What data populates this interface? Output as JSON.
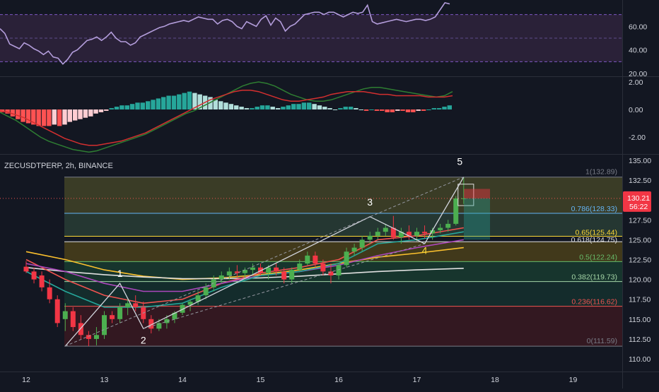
{
  "header": {
    "symbol_label": "ZECUSDTPERP, 2h, BINANCE"
  },
  "colors": {
    "background": "#131722",
    "up": "#26a69a",
    "down": "#ef5350",
    "bright_up": "#4caf50",
    "bright_down": "#f23645",
    "rsi_line": "#b39ddb",
    "rsi_band": "#7e57c2",
    "macd_line": "#2e7d32",
    "signal_line": "#d32f2f"
  },
  "rsi": {
    "axis_ticks": [
      "60.00",
      "40.00",
      "20.00"
    ],
    "upper_band": 70,
    "lower_band": 30,
    "values": [
      58,
      54,
      45,
      43,
      41,
      46,
      44,
      41,
      39,
      36,
      39,
      34,
      33,
      28,
      32,
      38,
      40,
      44,
      48,
      49,
      51,
      48,
      51,
      55,
      50,
      47,
      47,
      44,
      46,
      51,
      53,
      55,
      57,
      59,
      60,
      62,
      63,
      64,
      65,
      64,
      66,
      68,
      67,
      66,
      66,
      62,
      65,
      66,
      64,
      60,
      58,
      64,
      62,
      60,
      66,
      69,
      61,
      67,
      64,
      56,
      60,
      62,
      66,
      70,
      71,
      72,
      72,
      70,
      72,
      72,
      70,
      68,
      70,
      72,
      71,
      72,
      78,
      64,
      62,
      63,
      64,
      65,
      66,
      65,
      64,
      65,
      66,
      66,
      65,
      66,
      68,
      74,
      80,
      79
    ]
  },
  "macd": {
    "axis_ticks": [
      "2.00",
      "0.00",
      "-2.00"
    ],
    "histogram": [
      -0.2,
      -0.3,
      -0.5,
      -0.7,
      -0.9,
      -1.0,
      -1.1,
      -1.2,
      -1.2,
      -1.2,
      -1.1,
      -1.2,
      -1.1,
      -0.9,
      -0.8,
      -0.7,
      -0.6,
      -0.5,
      -0.3,
      -0.2,
      -0.1,
      0.1,
      0.2,
      0.3,
      0.3,
      0.4,
      0.5,
      0.5,
      0.6,
      0.7,
      0.8,
      0.9,
      1.0,
      1.0,
      1.1,
      1.2,
      1.3,
      1.2,
      1.1,
      1.0,
      0.9,
      0.7,
      0.6,
      0.5,
      0.4,
      0.3,
      0.2,
      0.1,
      0.1,
      0.2,
      0.3,
      0.3,
      0.2,
      0.1,
      0.2,
      0.3,
      0.4,
      0.4,
      0.5,
      0.5,
      0.4,
      0.3,
      0.2,
      0.1,
      0.0,
      0.1,
      0.2,
      0.2,
      0.1,
      0.0,
      -0.1,
      0.0,
      -0.1,
      -0.1,
      -0.2,
      -0.2,
      -0.1,
      -0.1,
      -0.2,
      -0.2,
      -0.1,
      -0.1,
      0.0,
      0.1,
      0.1,
      0.2,
      0.3
    ],
    "macd_line": [
      -0.2,
      -0.5,
      -0.8,
      -1.2,
      -1.6,
      -2.0,
      -2.3,
      -2.5,
      -2.7,
      -2.9,
      -3.0,
      -3.1,
      -3.0,
      -2.8,
      -2.6,
      -2.4,
      -2.2,
      -2.0,
      -1.8,
      -1.5,
      -1.2,
      -0.9,
      -0.6,
      -0.3,
      -0.1,
      0.2,
      0.5,
      0.8,
      1.1,
      1.4,
      1.7,
      1.9,
      2.0,
      1.9,
      1.7,
      1.4,
      1.1,
      0.9,
      0.7,
      0.6,
      0.6,
      0.7,
      0.9,
      1.1,
      1.3,
      1.5,
      1.6,
      1.6,
      1.5,
      1.4,
      1.3,
      1.2,
      1.1,
      1.0,
      0.9,
      1.0,
      1.3
    ],
    "signal_line": [
      -0.1,
      -0.2,
      -0.4,
      -0.6,
      -0.9,
      -1.2,
      -1.5,
      -1.8,
      -2.1,
      -2.3,
      -2.5,
      -2.6,
      -2.6,
      -2.5,
      -2.4,
      -2.3,
      -2.1,
      -1.9,
      -1.7,
      -1.4,
      -1.1,
      -0.8,
      -0.5,
      -0.2,
      0.1,
      0.4,
      0.7,
      0.9,
      1.1,
      1.3,
      1.4,
      1.4,
      1.3,
      1.1,
      0.9,
      0.7,
      0.6,
      0.6,
      0.7,
      0.8,
      0.9,
      1.1,
      1.2,
      1.3,
      1.3,
      1.3,
      1.2,
      1.1,
      1.1,
      1.0,
      1.0,
      1.0,
      1.0,
      0.9,
      0.9,
      0.9,
      1.0
    ]
  },
  "price_axis": {
    "ticks": [
      "135.00",
      "132.50",
      "127.50",
      "125.00",
      "122.50",
      "120.00",
      "117.50",
      "115.00",
      "112.50",
      "110.00"
    ],
    "current_price": "130.21",
    "countdown": "56:22"
  },
  "chart_data": {
    "type": "candlestick",
    "symbol": "ZECUSDTPERP",
    "interval": "2h",
    "exchange": "BINANCE",
    "x_labels": [
      "12",
      "13",
      "14",
      "15",
      "16",
      "17",
      "18",
      "19"
    ],
    "ylim": [
      109.5,
      135.5
    ],
    "candles": [
      [
        12.0,
        121.6,
        122.3,
        120.8,
        121.0
      ],
      [
        12.1,
        121.0,
        121.5,
        119.5,
        120.0
      ],
      [
        12.2,
        120.5,
        121.0,
        118.5,
        119.0
      ],
      [
        12.3,
        119.0,
        120.0,
        117.0,
        117.5
      ],
      [
        12.4,
        117.5,
        118.0,
        114.0,
        114.5
      ],
      [
        12.5,
        115.0,
        117.0,
        113.5,
        116.0
      ],
      [
        12.6,
        116.0,
        116.5,
        113.5,
        114.0
      ],
      [
        12.7,
        114.5,
        115.5,
        112.5,
        113.0
      ],
      [
        12.8,
        113.0,
        113.5,
        111.6,
        112.5
      ],
      [
        12.9,
        112.5,
        114.0,
        111.7,
        113.0
      ],
      [
        13.0,
        113.0,
        116.0,
        112.5,
        115.5
      ],
      [
        13.1,
        115.5,
        116.0,
        114.5,
        115.0
      ],
      [
        13.2,
        115.0,
        117.0,
        114.5,
        116.5
      ],
      [
        13.3,
        116.5,
        117.5,
        115.5,
        117.0
      ],
      [
        13.4,
        117.0,
        118.0,
        116.0,
        116.5
      ],
      [
        13.5,
        116.5,
        117.2,
        114.5,
        115.0
      ],
      [
        13.6,
        115.0,
        115.5,
        113.2,
        113.8
      ],
      [
        13.7,
        113.8,
        115.0,
        113.5,
        114.5
      ],
      [
        13.8,
        114.5,
        115.5,
        113.8,
        115.0
      ],
      [
        13.9,
        115.0,
        116.0,
        114.5,
        115.8
      ],
      [
        14.0,
        115.8,
        117.0,
        115.5,
        116.8
      ],
      [
        14.1,
        116.8,
        117.5,
        116.0,
        117.2
      ],
      [
        14.2,
        117.2,
        118.5,
        116.8,
        118.0
      ],
      [
        14.3,
        118.0,
        119.5,
        117.5,
        119.0
      ],
      [
        14.4,
        119.0,
        120.5,
        118.5,
        120.0
      ],
      [
        14.5,
        120.0,
        121.0,
        119.5,
        120.5
      ],
      [
        14.6,
        120.5,
        121.5,
        120.0,
        121.0
      ],
      [
        14.7,
        121.0,
        121.8,
        120.2,
        120.8
      ],
      [
        14.8,
        120.8,
        121.5,
        120.0,
        121.2
      ],
      [
        14.9,
        121.2,
        122.0,
        120.5,
        121.5
      ],
      [
        15.0,
        121.5,
        122.0,
        120.5,
        120.8
      ],
      [
        15.1,
        120.8,
        121.8,
        120.0,
        121.5
      ],
      [
        15.2,
        121.5,
        122.0,
        120.5,
        121.0
      ],
      [
        15.3,
        121.0,
        121.5,
        119.5,
        120.0
      ],
      [
        15.4,
        120.0,
        121.5,
        119.5,
        121.2
      ],
      [
        15.5,
        121.2,
        122.5,
        121.0,
        122.0
      ],
      [
        15.6,
        122.0,
        123.5,
        121.8,
        123.0
      ],
      [
        15.7,
        123.0,
        123.5,
        121.5,
        122.0
      ],
      [
        15.8,
        122.0,
        122.5,
        120.5,
        121.0
      ],
      [
        15.9,
        121.0,
        122.0,
        119.5,
        120.5
      ],
      [
        16.0,
        120.5,
        122.0,
        120.0,
        121.8
      ],
      [
        16.1,
        121.8,
        124.0,
        121.5,
        123.5
      ],
      [
        16.2,
        123.5,
        124.5,
        123.0,
        124.0
      ],
      [
        16.3,
        124.0,
        125.5,
        123.5,
        125.0
      ],
      [
        16.4,
        125.0,
        126.0,
        124.5,
        125.5
      ],
      [
        16.5,
        125.5,
        126.5,
        125.0,
        126.0
      ],
      [
        16.6,
        126.0,
        127.0,
        125.5,
        126.5
      ],
      [
        16.7,
        126.5,
        128.0,
        125.0,
        125.3
      ],
      [
        16.8,
        125.3,
        126.5,
        124.5,
        126.0
      ],
      [
        16.9,
        126.0,
        126.8,
        125.0,
        125.5
      ],
      [
        17.0,
        125.5,
        126.5,
        124.8,
        126.0
      ],
      [
        17.1,
        126.0,
        126.8,
        125.2,
        125.8
      ],
      [
        17.2,
        125.8,
        126.5,
        125.0,
        126.2
      ],
      [
        17.3,
        126.2,
        127.0,
        125.8,
        126.5
      ],
      [
        17.4,
        126.5,
        127.5,
        126.0,
        127.0
      ],
      [
        17.5,
        127.0,
        130.5,
        126.8,
        130.2
      ],
      [
        17.6,
        130.2,
        132.9,
        129.5,
        130.21
      ]
    ],
    "moving_averages": [
      {
        "color": "#fbc02d",
        "values": [
          [
            12.0,
            123.5
          ],
          [
            12.5,
            122.5
          ],
          [
            13.0,
            121.2
          ],
          [
            13.5,
            120.4
          ],
          [
            14.0,
            120.0
          ],
          [
            14.5,
            120.2
          ],
          [
            15.0,
            120.6
          ],
          [
            15.5,
            121.2
          ],
          [
            16.0,
            122.0
          ],
          [
            16.5,
            122.8
          ],
          [
            17.0,
            123.3
          ],
          [
            17.6,
            124.0
          ]
        ]
      },
      {
        "color": "#e0e0e0",
        "values": [
          [
            12.0,
            121.5
          ],
          [
            12.5,
            121.0
          ],
          [
            13.0,
            120.6
          ],
          [
            13.5,
            120.3
          ],
          [
            14.0,
            120.1
          ],
          [
            14.5,
            120.1
          ],
          [
            15.0,
            120.2
          ],
          [
            15.5,
            120.4
          ],
          [
            16.0,
            120.7
          ],
          [
            16.5,
            121.0
          ],
          [
            17.0,
            121.2
          ],
          [
            17.6,
            121.4
          ]
        ]
      },
      {
        "color": "#ef5350",
        "values": [
          [
            12.0,
            122.5
          ],
          [
            12.5,
            120.0
          ],
          [
            13.0,
            118.0
          ],
          [
            13.5,
            117.0
          ],
          [
            14.0,
            117.5
          ],
          [
            14.5,
            119.5
          ],
          [
            15.0,
            120.8
          ],
          [
            15.5,
            121.5
          ],
          [
            16.0,
            122.5
          ],
          [
            16.5,
            125.0
          ],
          [
            17.0,
            125.5
          ],
          [
            17.6,
            126.5
          ]
        ]
      },
      {
        "color": "#ab47bc",
        "values": [
          [
            12.0,
            122.0
          ],
          [
            12.5,
            121.0
          ],
          [
            13.0,
            119.5
          ],
          [
            13.5,
            118.5
          ],
          [
            14.0,
            118.5
          ],
          [
            14.5,
            119.5
          ],
          [
            15.0,
            120.5
          ],
          [
            15.5,
            121.0
          ],
          [
            16.0,
            121.8
          ],
          [
            16.5,
            123.0
          ],
          [
            17.0,
            124.0
          ],
          [
            17.6,
            125.0
          ]
        ]
      },
      {
        "color": "#26a69a",
        "values": [
          [
            12.0,
            121.0
          ],
          [
            12.5,
            118.5
          ],
          [
            13.0,
            116.5
          ],
          [
            13.5,
            116.5
          ],
          [
            14.0,
            117.0
          ],
          [
            14.5,
            119.0
          ],
          [
            15.0,
            120.5
          ],
          [
            15.5,
            121.0
          ],
          [
            16.0,
            122.0
          ],
          [
            16.5,
            124.5
          ],
          [
            17.0,
            125.0
          ],
          [
            17.6,
            126.0
          ]
        ]
      }
    ],
    "fibonacci": [
      {
        "level": "1",
        "label": "1(132.89)",
        "price": 132.89,
        "color": "#787b86"
      },
      {
        "level": "0.786",
        "label": "0.786(128.33)",
        "price": 128.33,
        "color": "#64b5f6"
      },
      {
        "level": "0.65",
        "label": "0.65(125.44)",
        "price": 125.44,
        "color": "#fdd835"
      },
      {
        "level": "0.618",
        "label": "0.618(124.75)",
        "price": 124.75,
        "color": "#e0e0e0"
      },
      {
        "level": "0.5",
        "label": "0.5(122.24)",
        "price": 122.24,
        "color": "#66bb6a"
      },
      {
        "level": "0.382",
        "label": "0.382(119.73)",
        "price": 119.73,
        "color": "#a5d6a7"
      },
      {
        "level": "0.236",
        "label": "0.236(116.62)",
        "price": 116.62,
        "color": "#ef5350"
      },
      {
        "level": "0",
        "label": "0(111.59)",
        "price": 111.59,
        "color": "#787b86"
      }
    ],
    "fib_zones": [
      {
        "top": 132.89,
        "bottom": 128.33,
        "color": "#6b6b2c"
      },
      {
        "top": 128.33,
        "bottom": 125.44,
        "color": "#3b5f48"
      },
      {
        "top": 124.75,
        "bottom": 122.24,
        "color": "#7a6415"
      },
      {
        "top": 122.24,
        "bottom": 119.73,
        "color": "#1d5a3c"
      },
      {
        "top": 119.73,
        "bottom": 116.62,
        "color": "#17473a"
      },
      {
        "top": 116.62,
        "bottom": 111.59,
        "color": "#5a1a22"
      }
    ],
    "elliott_waves": {
      "labels": [
        "1",
        "2",
        "3",
        "4",
        "5"
      ],
      "points": [
        [
          12.5,
          111.6
        ],
        [
          13.2,
          119.5
        ],
        [
          13.5,
          113.8
        ],
        [
          16.4,
          127.9
        ],
        [
          17.1,
          124.5
        ],
        [
          17.6,
          132.9
        ]
      ],
      "label_points": [
        [
          13.2,
          120.3
        ],
        [
          13.5,
          111.9
        ],
        [
          16.4,
          129.3
        ],
        [
          17.1,
          123.2
        ],
        [
          17.55,
          134.4
        ]
      ]
    },
    "position_box": {
      "x_start": 17.75,
      "x_end": 18.05,
      "entry": 130.21,
      "stop": 131.4,
      "target": 125.0
    },
    "highlight_box": {
      "x_start": 17.5,
      "x_end": 17.7,
      "top": 132.0,
      "bottom": 129.3
    }
  }
}
